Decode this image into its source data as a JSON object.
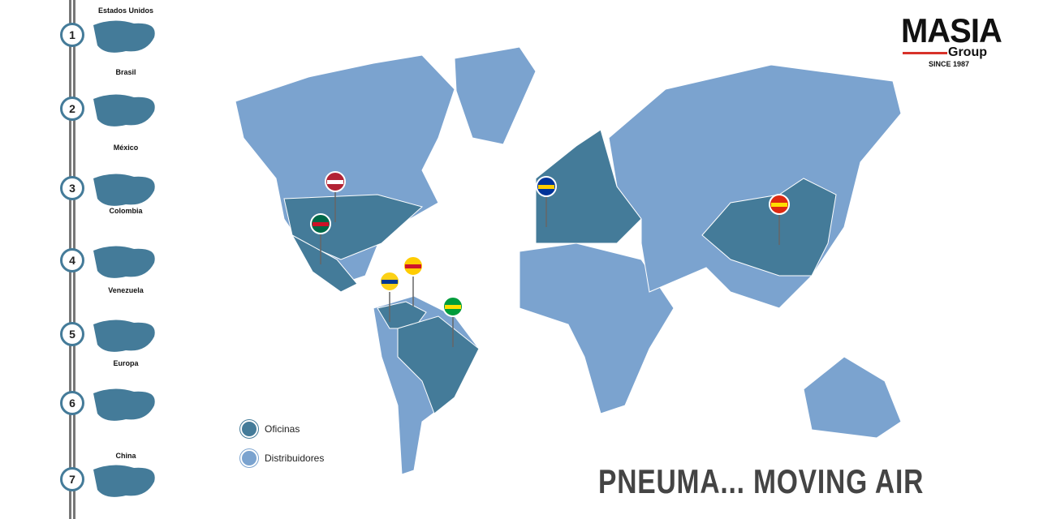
{
  "sidebar": {
    "items": [
      {
        "num": "1",
        "label": "Estados Unidos"
      },
      {
        "num": "2",
        "label": "Brasil"
      },
      {
        "num": "3",
        "label": "México"
      },
      {
        "num": "4",
        "label": "Colombia"
      },
      {
        "num": "5",
        "label": "Venezuela"
      },
      {
        "num": "6",
        "label": "Europa"
      },
      {
        "num": "7",
        "label": "China"
      }
    ]
  },
  "logo": {
    "brand": "MASIA",
    "sub": "Group",
    "since": "SINCE 1987"
  },
  "legend": {
    "offices": "Oficinas",
    "distributors": "Distribuidores"
  },
  "slogan": "PNEUMA... MOVING AIR",
  "colors": {
    "offices": "#447b99",
    "distributors": "#7ba3cf",
    "accent": "#d8322a"
  },
  "pins": [
    "usa-flag",
    "mexico-flag",
    "venezuela-flag",
    "colombia-flag",
    "brazil-flag",
    "eu-flag",
    "china-flag"
  ]
}
